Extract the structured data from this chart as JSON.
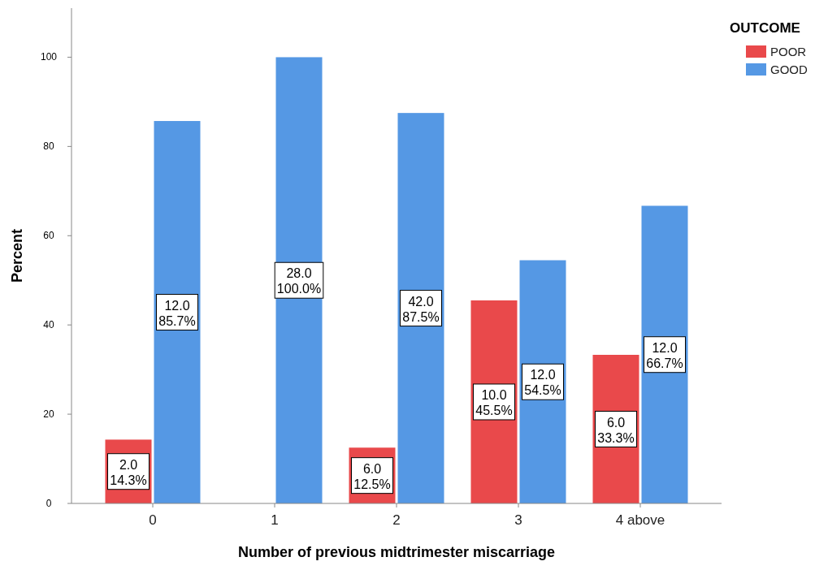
{
  "chart_data": {
    "type": "bar",
    "xlabel": "Number of previous midtrimester miscarriage",
    "ylabel": "Percent",
    "legend_title": "OUTCOME",
    "categories": [
      "0",
      "1",
      "2",
      "3",
      "4 above"
    ],
    "series": [
      {
        "name": "POOR",
        "color": "#e9494b",
        "values": [
          14.3,
          null,
          12.5,
          45.5,
          33.3
        ],
        "value_labels": [
          "2.0\n14.3%",
          null,
          "6.0\n12.5%",
          "10.0\n45.5%",
          "6.0\n33.3%"
        ]
      },
      {
        "name": "GOOD",
        "color": "#5598e4",
        "values": [
          85.7,
          100.0,
          87.5,
          54.5,
          66.7
        ],
        "value_labels": [
          "12.0\n85.7%",
          "28.0\n100.0%",
          "42.0\n87.5%",
          "12.0\n54.5%",
          "12.0\n66.7%"
        ]
      }
    ],
    "ylim": [
      0,
      111
    ],
    "yticks": [
      0,
      20,
      40,
      60,
      80,
      100
    ],
    "grid": false,
    "legend": "top right"
  }
}
